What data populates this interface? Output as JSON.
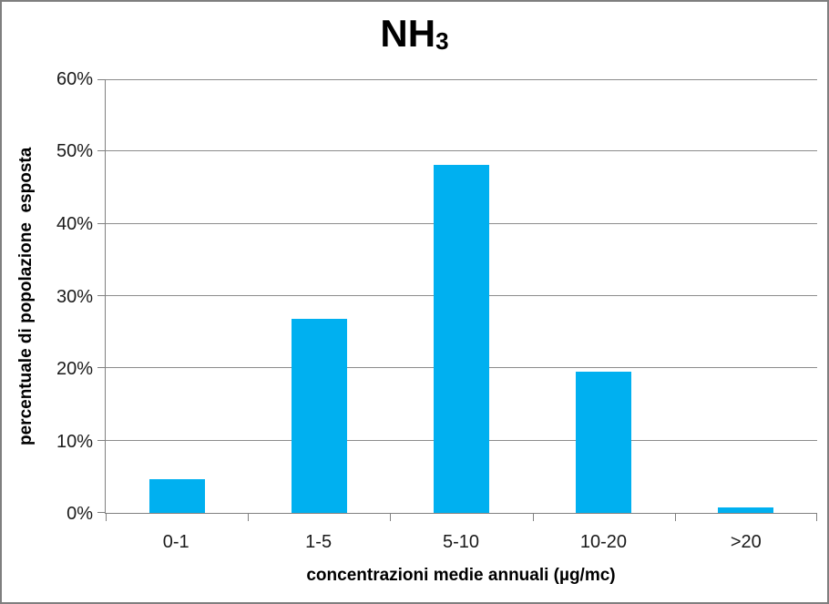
{
  "title": {
    "main": "NH",
    "subscript": "3"
  },
  "chart_data": {
    "type": "bar",
    "title": "NH3",
    "categories": [
      "0-1",
      "1-5",
      "5-10",
      "10-20",
      ">20"
    ],
    "values": [
      4.7,
      26.9,
      48.2,
      19.5,
      0.7
    ],
    "values_unit": "%",
    "xlabel": "concentrazioni medie annuali (µg/mc)",
    "ylabel": "percentuale di popolazione  esposta",
    "ylim": [
      0,
      60
    ],
    "ytick_step": 10,
    "ytick_labels": [
      "0%",
      "10%",
      "20%",
      "30%",
      "40%",
      "50%",
      "60%"
    ],
    "grid": true,
    "legend": "none",
    "colors": {
      "bar": "#00b0f0",
      "gridline": "#8c8c8c",
      "axis": "#808080",
      "text": "#1a1a1a",
      "frame_border": "#7f7f7f",
      "background": "#ffffff"
    }
  }
}
